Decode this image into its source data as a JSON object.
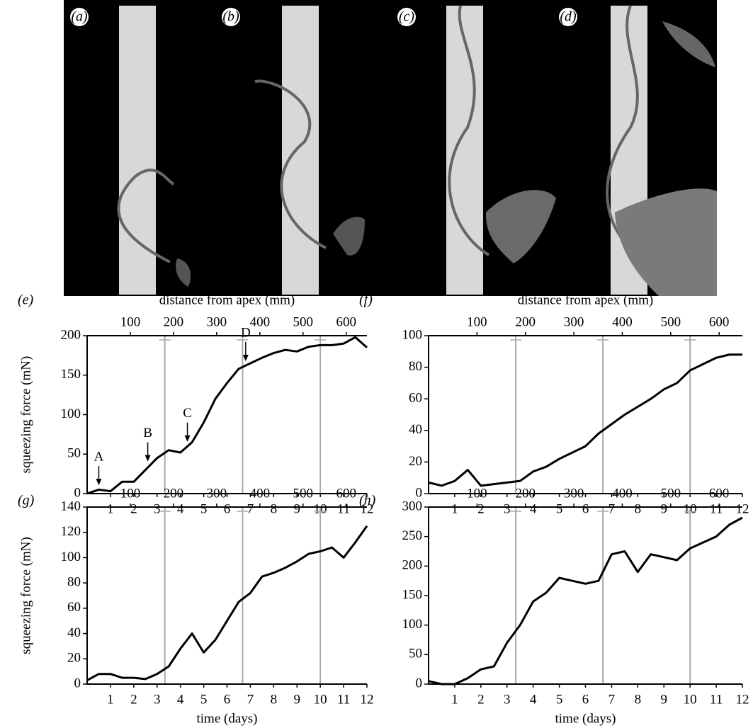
{
  "photos": [
    {
      "label": "(a)"
    },
    {
      "label": "(b)"
    },
    {
      "label": "(c)"
    },
    {
      "label": "(d)"
    }
  ],
  "chart_data": [
    {
      "type": "line",
      "label": "(e)",
      "x2label": "distance from apex (mm)",
      "ylabel": "squeezing force (mN)",
      "xlim": [
        0,
        12
      ],
      "xticks": [
        1,
        2,
        3,
        4,
        5,
        6,
        7,
        8,
        9,
        10,
        11,
        12
      ],
      "x2lim": [
        0,
        648
      ],
      "x2ticks": [
        100,
        200,
        300,
        400,
        500,
        600
      ],
      "x2markers": [
        180,
        360,
        540
      ],
      "ylim": [
        0,
        200
      ],
      "yticks": [
        0,
        50,
        100,
        150,
        200
      ],
      "x": [
        0,
        0.5,
        1,
        1.5,
        2,
        2.5,
        3,
        3.5,
        4,
        4.5,
        5,
        5.5,
        6,
        6.5,
        7,
        7.5,
        8,
        8.5,
        9,
        9.5,
        10,
        10.5,
        11,
        11.5,
        12
      ],
      "series": [
        {
          "color": "#000000",
          "values": [
            0,
            5,
            3,
            15,
            15,
            30,
            45,
            55,
            52,
            65,
            90,
            120,
            140,
            158,
            165,
            172,
            178,
            182,
            180,
            186,
            188,
            188,
            190,
            198,
            185
          ]
        }
      ],
      "annotations": [
        {
          "text": "A",
          "x": 0.5,
          "y": 8
        },
        {
          "text": "B",
          "x": 2.6,
          "y": 38
        },
        {
          "text": "C",
          "x": 4.3,
          "y": 63
        },
        {
          "text": "D",
          "x": 6.8,
          "y": 165
        }
      ]
    },
    {
      "type": "line",
      "label": "(f)",
      "x2label": "distance from apex (mm)",
      "xlim": [
        0,
        12
      ],
      "xticks": [
        1,
        2,
        3,
        4,
        5,
        6,
        7,
        8,
        9,
        10,
        11,
        12
      ],
      "x2lim": [
        0,
        648
      ],
      "x2ticks": [
        100,
        200,
        300,
        400,
        500,
        600
      ],
      "x2markers": [
        180,
        360,
        540
      ],
      "ylim": [
        0,
        100
      ],
      "yticks": [
        0,
        20,
        40,
        60,
        80,
        100
      ],
      "x": [
        0,
        0.5,
        1,
        1.5,
        2,
        2.5,
        3,
        3.5,
        4,
        4.5,
        5,
        5.5,
        6,
        6.5,
        7,
        7.5,
        8,
        8.5,
        9,
        9.5,
        10,
        10.5,
        11,
        11.5,
        12
      ],
      "series": [
        {
          "color": "#000000",
          "values": [
            7,
            5,
            8,
            15,
            5,
            6,
            7,
            8,
            14,
            17,
            22,
            26,
            30,
            38,
            44,
            50,
            55,
            60,
            66,
            70,
            78,
            82,
            86,
            88,
            88
          ]
        }
      ]
    },
    {
      "type": "line",
      "label": "(g)",
      "ylabel": "squeezing force (mN)",
      "xlabel": "time (days)",
      "xlim": [
        0,
        12
      ],
      "xticks": [
        1,
        2,
        3,
        4,
        5,
        6,
        7,
        8,
        9,
        10,
        11,
        12
      ],
      "x2lim": [
        0,
        648
      ],
      "x2ticks": [
        100,
        200,
        300,
        400,
        500,
        600
      ],
      "x2markers": [
        180,
        360,
        540
      ],
      "ylim": [
        0,
        140
      ],
      "yticks": [
        0,
        20,
        40,
        60,
        80,
        100,
        120,
        140
      ],
      "x": [
        0,
        0.5,
        1,
        1.5,
        2,
        2.5,
        3,
        3.5,
        4,
        4.5,
        5,
        5.5,
        6,
        6.5,
        7,
        7.5,
        8,
        8.5,
        9,
        9.5,
        10,
        10.5,
        11,
        11.5,
        12
      ],
      "series": [
        {
          "color": "#000000",
          "values": [
            3,
            8,
            8,
            5,
            5,
            4,
            8,
            14,
            28,
            40,
            25,
            35,
            50,
            65,
            72,
            85,
            88,
            92,
            97,
            103,
            105,
            108,
            100,
            112,
            125
          ]
        }
      ]
    },
    {
      "type": "line",
      "label": "(h)",
      "xlabel": "time (days)",
      "xlim": [
        0,
        12
      ],
      "xticks": [
        1,
        2,
        3,
        4,
        5,
        6,
        7,
        8,
        9,
        10,
        11,
        12
      ],
      "x2lim": [
        0,
        648
      ],
      "x2ticks": [
        100,
        200,
        300,
        400,
        500,
        600
      ],
      "x2markers": [
        180,
        360,
        540
      ],
      "ylim": [
        0,
        300
      ],
      "yticks": [
        0,
        50,
        100,
        150,
        200,
        250,
        300
      ],
      "x": [
        0,
        0.5,
        1,
        1.5,
        2,
        2.5,
        3,
        3.5,
        4,
        4.5,
        5,
        5.5,
        6,
        6.5,
        7,
        7.5,
        8,
        8.5,
        9,
        9.5,
        10,
        10.5,
        11,
        11.5,
        12
      ],
      "series": [
        {
          "color": "#000000",
          "values": [
            5,
            0,
            0,
            10,
            25,
            30,
            70,
            100,
            140,
            155,
            180,
            175,
            170,
            175,
            220,
            225,
            190,
            220,
            215,
            210,
            230,
            240,
            250,
            270,
            282
          ]
        }
      ]
    }
  ]
}
